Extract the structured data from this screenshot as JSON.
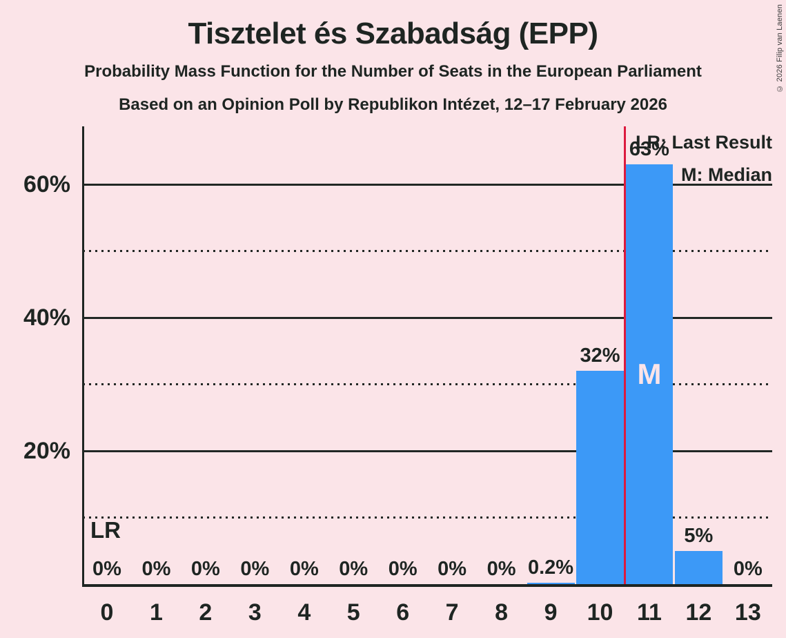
{
  "header": {
    "title": "Tisztelet és Szabadság (EPP)",
    "subtitle": "Probability Mass Function for the Number of Seats in the European Parliament",
    "source_line": "Based on an Opinion Poll by Republikon Intézet, 12–17 February 2026"
  },
  "copyright": "© 2026 Filip van Laenen",
  "legend": {
    "last_result": "LR: Last Result",
    "median": "M: Median"
  },
  "annotations": {
    "last_result_label": "LR",
    "median_label": "M"
  },
  "colors": {
    "background": "#fbe4e8",
    "bar": "#3c99f7",
    "last_result_line": "#dc1a3e",
    "text": "#1e2522",
    "median_text": "#fbe4e8"
  },
  "chart_data": {
    "type": "bar",
    "title": "Tisztelet és Szabadság (EPP)",
    "subtitle": "Probability Mass Function for the Number of Seats in the European Parliament",
    "source": "Based on an Opinion Poll by Republikon Intézet, 12–17 February 2026",
    "categories": [
      "0",
      "1",
      "2",
      "3",
      "4",
      "5",
      "6",
      "7",
      "8",
      "9",
      "10",
      "11",
      "12",
      "13"
    ],
    "values": [
      0,
      0,
      0,
      0,
      0,
      0,
      0,
      0,
      0,
      0.2,
      32,
      63,
      5,
      0
    ],
    "bar_labels": [
      "0%",
      "0%",
      "0%",
      "0%",
      "0%",
      "0%",
      "0%",
      "0%",
      "0%",
      "0.2%",
      "32%",
      "63%",
      "5%",
      "0%"
    ],
    "xlabel": "",
    "ylabel": "",
    "ylim": [
      0,
      68.7
    ],
    "yticks": [
      {
        "value": 20,
        "label": "20%"
      },
      {
        "value": 40,
        "label": "40%"
      },
      {
        "value": 60,
        "label": "60%"
      }
    ],
    "solid_gridlines": [
      20,
      40,
      60
    ],
    "dotted_gridlines": [
      10,
      30,
      50
    ],
    "grid": true,
    "legend_position": "top-right",
    "median_seat": "11",
    "median_bar_index": 11,
    "last_result_line_position": 10.5
  }
}
